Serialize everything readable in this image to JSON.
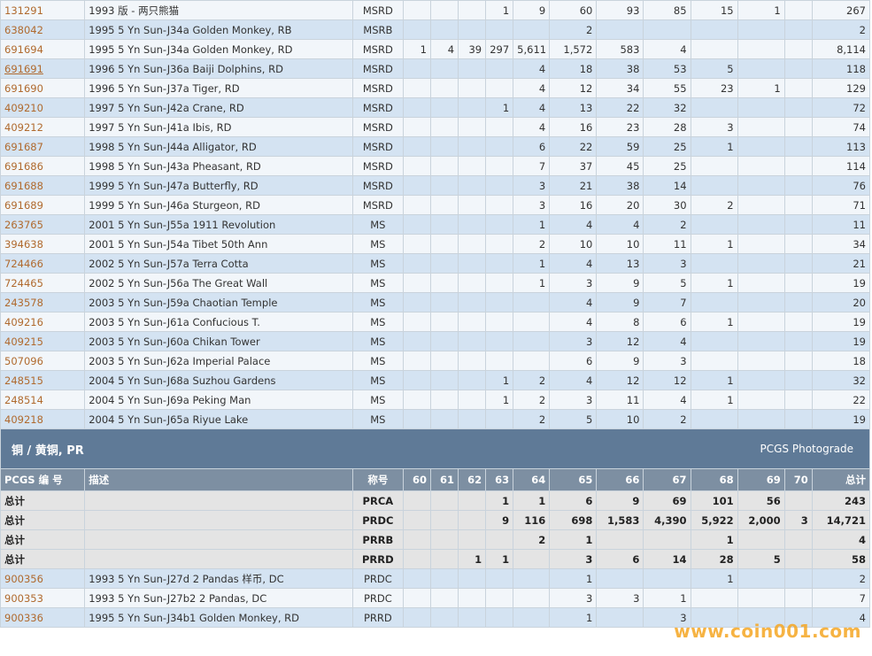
{
  "top_rows": [
    {
      "code": "131291",
      "desc": "1993 版 - 两只熊猫",
      "grade": "MSRD",
      "g": [
        "",
        "",
        "",
        "",
        "1",
        "9",
        "60",
        "93",
        "85",
        "15",
        "1",
        ""
      ],
      "total": "267"
    },
    {
      "code": "638042",
      "desc": "1995 5 Yn Sun-J34a Golden Monkey, RB",
      "grade": "MSRB",
      "g": [
        "",
        "",
        "",
        "",
        "",
        "",
        "2",
        "",
        "",
        "",
        "",
        ""
      ],
      "total": "2"
    },
    {
      "code": "691694",
      "desc": "1995 5 Yn Sun-J34a Golden Monkey, RD",
      "grade": "MSRD",
      "g": [
        "",
        "1",
        "4",
        "39",
        "297",
        "5,611",
        "1,572",
        "583",
        "4",
        "",
        "",
        ""
      ],
      "total": "8,114"
    },
    {
      "code": "691691",
      "desc": "1996 5 Yn Sun-J36a Baiji Dolphins, RD",
      "grade": "MSRD",
      "g": [
        "",
        "",
        "",
        "",
        "",
        "4",
        "18",
        "38",
        "53",
        "5",
        "",
        ""
      ],
      "total": "118",
      "underline": true
    },
    {
      "code": "691690",
      "desc": "1996 5 Yn Sun-J37a Tiger, RD",
      "grade": "MSRD",
      "g": [
        "",
        "",
        "",
        "",
        "",
        "4",
        "12",
        "34",
        "55",
        "23",
        "1",
        ""
      ],
      "total": "129"
    },
    {
      "code": "409210",
      "desc": "1997 5 Yn Sun-J42a Crane, RD",
      "grade": "MSRD",
      "g": [
        "",
        "",
        "",
        "",
        "1",
        "4",
        "13",
        "22",
        "32",
        "",
        "",
        ""
      ],
      "total": "72"
    },
    {
      "code": "409212",
      "desc": "1997 5 Yn Sun-J41a Ibis, RD",
      "grade": "MSRD",
      "g": [
        "",
        "",
        "",
        "",
        "",
        "4",
        "16",
        "23",
        "28",
        "3",
        "",
        ""
      ],
      "total": "74"
    },
    {
      "code": "691687",
      "desc": "1998 5 Yn Sun-J44a Alligator, RD",
      "grade": "MSRD",
      "g": [
        "",
        "",
        "",
        "",
        "",
        "6",
        "22",
        "59",
        "25",
        "1",
        "",
        ""
      ],
      "total": "113"
    },
    {
      "code": "691686",
      "desc": "1998 5 Yn Sun-J43a Pheasant, RD",
      "grade": "MSRD",
      "g": [
        "",
        "",
        "",
        "",
        "",
        "7",
        "37",
        "45",
        "25",
        "",
        "",
        ""
      ],
      "total": "114"
    },
    {
      "code": "691688",
      "desc": "1999 5 Yn Sun-J47a Butterfly, RD",
      "grade": "MSRD",
      "g": [
        "",
        "",
        "",
        "",
        "",
        "3",
        "21",
        "38",
        "14",
        "",
        "",
        ""
      ],
      "total": "76"
    },
    {
      "code": "691689",
      "desc": "1999 5 Yn Sun-J46a Sturgeon, RD",
      "grade": "MSRD",
      "g": [
        "",
        "",
        "",
        "",
        "",
        "3",
        "16",
        "20",
        "30",
        "2",
        "",
        ""
      ],
      "total": "71"
    },
    {
      "code": "263765",
      "desc": "2001 5 Yn Sun-J55a 1911 Revolution",
      "grade": "MS",
      "g": [
        "",
        "",
        "",
        "",
        "",
        "1",
        "4",
        "4",
        "2",
        "",
        "",
        ""
      ],
      "total": "11"
    },
    {
      "code": "394638",
      "desc": "2001 5 Yn Sun-J54a Tibet 50th Ann",
      "grade": "MS",
      "g": [
        "",
        "",
        "",
        "",
        "",
        "2",
        "10",
        "10",
        "11",
        "1",
        "",
        ""
      ],
      "total": "34"
    },
    {
      "code": "724466",
      "desc": "2002 5 Yn Sun-J57a Terra Cotta",
      "grade": "MS",
      "g": [
        "",
        "",
        "",
        "",
        "",
        "1",
        "4",
        "13",
        "3",
        "",
        "",
        ""
      ],
      "total": "21"
    },
    {
      "code": "724465",
      "desc": "2002 5 Yn Sun-J56a The Great Wall",
      "grade": "MS",
      "g": [
        "",
        "",
        "",
        "",
        "",
        "1",
        "3",
        "9",
        "5",
        "1",
        "",
        ""
      ],
      "total": "19"
    },
    {
      "code": "243578",
      "desc": "2003 5 Yn Sun-J59a Chaotian Temple",
      "grade": "MS",
      "g": [
        "",
        "",
        "",
        "",
        "",
        "",
        "4",
        "9",
        "7",
        "",
        "",
        ""
      ],
      "total": "20"
    },
    {
      "code": "409216",
      "desc": "2003 5 Yn Sun-J61a Confucious T.",
      "grade": "MS",
      "g": [
        "",
        "",
        "",
        "",
        "",
        "",
        "4",
        "8",
        "6",
        "1",
        "",
        ""
      ],
      "total": "19"
    },
    {
      "code": "409215",
      "desc": "2003 5 Yn Sun-J60a Chikan Tower",
      "grade": "MS",
      "g": [
        "",
        "",
        "",
        "",
        "",
        "",
        "3",
        "12",
        "4",
        "",
        "",
        ""
      ],
      "total": "19"
    },
    {
      "code": "507096",
      "desc": "2003 5 Yn Sun-J62a Imperial Palace",
      "grade": "MS",
      "g": [
        "",
        "",
        "",
        "",
        "",
        "",
        "6",
        "9",
        "3",
        "",
        "",
        ""
      ],
      "total": "18"
    },
    {
      "code": "248515",
      "desc": "2004 5 Yn Sun-J68a Suzhou Gardens",
      "grade": "MS",
      "g": [
        "",
        "",
        "",
        "",
        "1",
        "2",
        "4",
        "12",
        "12",
        "1",
        "",
        ""
      ],
      "total": "32"
    },
    {
      "code": "248514",
      "desc": "2004 5 Yn Sun-J69a Peking Man",
      "grade": "MS",
      "g": [
        "",
        "",
        "",
        "",
        "1",
        "2",
        "3",
        "11",
        "4",
        "1",
        "",
        ""
      ],
      "total": "22"
    },
    {
      "code": "409218",
      "desc": "2004 5 Yn Sun-J65a Riyue Lake",
      "grade": "MS",
      "g": [
        "",
        "",
        "",
        "",
        "",
        "2",
        "5",
        "10",
        "2",
        "",
        "",
        ""
      ],
      "total": "19"
    }
  ],
  "section": {
    "title": "铜 / 黄铜, PR",
    "right": "PCGS Photograde"
  },
  "header": {
    "code": "PCGS 编 号",
    "desc": "描述",
    "grade": "称号",
    "grades": [
      "60",
      "61",
      "62",
      "63",
      "64",
      "65",
      "66",
      "67",
      "68",
      "69",
      "70"
    ],
    "total": "总计"
  },
  "total_rows": [
    {
      "label": "总计",
      "grade": "PRCA",
      "g": [
        "",
        "",
        "",
        "1",
        "1",
        "6",
        "9",
        "69",
        "101",
        "56",
        ""
      ],
      "total": "243"
    },
    {
      "label": "总计",
      "grade": "PRDC",
      "g": [
        "",
        "",
        "",
        "9",
        "116",
        "698",
        "1,583",
        "4,390",
        "5,922",
        "2,000",
        "3"
      ],
      "total": "14,721"
    },
    {
      "label": "总计",
      "grade": "PRRB",
      "g": [
        "",
        "",
        "",
        "",
        "2",
        "1",
        "",
        "",
        "1",
        "",
        ""
      ],
      "total": "4"
    },
    {
      "label": "总计",
      "grade": "PRRD",
      "g": [
        "",
        "",
        "1",
        "1",
        "",
        "3",
        "6",
        "14",
        "28",
        "5",
        ""
      ],
      "total": "58"
    }
  ],
  "bottom_rows": [
    {
      "code": "900356",
      "desc": "1993 5 Yn Sun-J27d 2 Pandas 样币, DC",
      "grade": "PRDC",
      "g": [
        "",
        "",
        "",
        "",
        "",
        "1",
        "",
        "",
        "1",
        "",
        ""
      ],
      "total": "2"
    },
    {
      "code": "900353",
      "desc": "1993 5 Yn Sun-J27b2 2 Pandas, DC",
      "grade": "PRDC",
      "g": [
        "",
        "",
        "",
        "",
        "",
        "3",
        "3",
        "1",
        "",
        "",
        ""
      ],
      "total": "7"
    },
    {
      "code": "900336",
      "desc": "1995 5 Yn Sun-J34b1 Golden Monkey, RD",
      "grade": "PRRD",
      "g": [
        "",
        "",
        "",
        "",
        "",
        "1",
        "",
        "3",
        "",
        "",
        ""
      ],
      "total": "4"
    }
  ],
  "watermark": "www.coin001.com"
}
